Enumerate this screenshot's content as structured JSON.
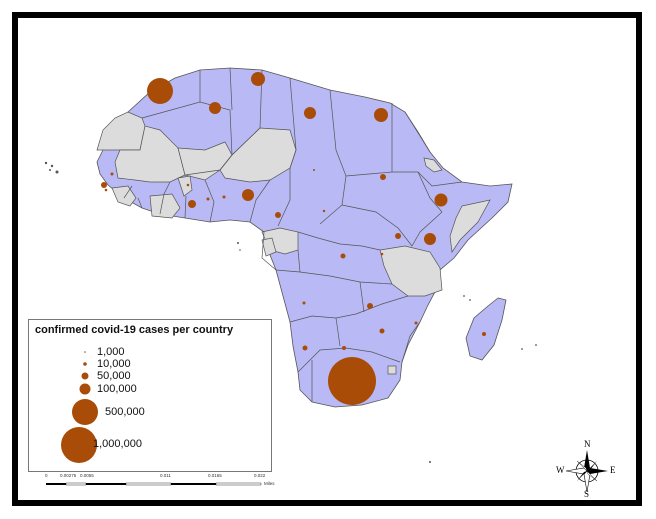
{
  "legend": {
    "title": "confirmed covid-19 cases per country",
    "items": [
      {
        "label": "1,000",
        "value": 1000
      },
      {
        "label": "10,000",
        "value": 10000
      },
      {
        "label": "50,000",
        "value": 50000
      },
      {
        "label": "100,000",
        "value": 100000
      },
      {
        "label": "500,000",
        "value": 500000
      },
      {
        "label": "1,000,000",
        "value": 1000000
      }
    ]
  },
  "scale_bar": {
    "ticks": [
      "0",
      "0.00275",
      "0.0055",
      "0.011",
      "0.0165",
      "0.022"
    ],
    "unit": "Miles"
  },
  "compass": {
    "north": "N",
    "south": "S",
    "east": "E",
    "west": "W"
  },
  "colors": {
    "reported_land": "#b9b9f5",
    "no_data_land": "#dcdcdc",
    "symbol": "#a84c08",
    "border": "#555555"
  },
  "case_symbols": [
    {
      "country": "Morocco",
      "size_class": "500,000"
    },
    {
      "country": "Tunisia",
      "size_class": "100,000+"
    },
    {
      "country": "Algeria",
      "size_class": "100,000"
    },
    {
      "country": "Libya",
      "size_class": "100,000"
    },
    {
      "country": "Egypt",
      "size_class": "100,000+"
    },
    {
      "country": "Ethiopia",
      "size_class": "100,000+"
    },
    {
      "country": "Kenya",
      "size_class": "100,000"
    },
    {
      "country": "Nigeria",
      "size_class": "100,000"
    },
    {
      "country": "Ghana",
      "size_class": "50,000"
    },
    {
      "country": "Cameroon",
      "size_class": "10,000"
    },
    {
      "country": "Sudan",
      "size_class": "10,000"
    },
    {
      "country": "Senegal",
      "size_class": "10,000"
    },
    {
      "country": "Uganda",
      "size_class": "10,000"
    },
    {
      "country": "DR Congo",
      "size_class": "10,000"
    },
    {
      "country": "Zambia",
      "size_class": "10,000"
    },
    {
      "country": "Mozambique",
      "size_class": "10,000"
    },
    {
      "country": "Zimbabwe",
      "size_class": "10,000"
    },
    {
      "country": "Namibia",
      "size_class": "10,000"
    },
    {
      "country": "Madagascar",
      "size_class": "10,000"
    },
    {
      "country": "South Africa",
      "size_class": "1,000,000"
    }
  ]
}
